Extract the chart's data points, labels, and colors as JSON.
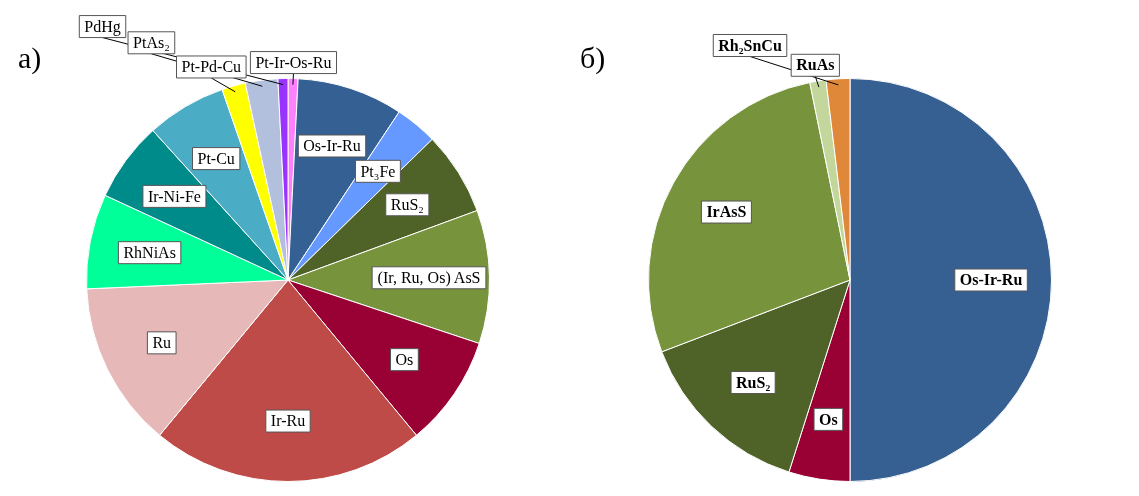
{
  "chart_data": [
    {
      "type": "pie",
      "title": "а)",
      "legend": false,
      "categories": [
        "Pt-Ir-Os-Ru",
        "Os-Ir-Ru",
        "Pt₃Fe",
        "RuS₂",
        "(Ir, Ru, Os) AsS",
        "Os",
        "Ir-Ru",
        "Ru",
        "RhNiAs",
        "Ir-Ni-Fe",
        "Pt-Cu",
        "Pt-Pd-Cu",
        "PtAs₂",
        "PdHg"
      ],
      "values": [
        0.8,
        8.5,
        3.4,
        6.7,
        10.7,
        8.9,
        22.0,
        13.3,
        7.6,
        6.4,
        6.4,
        1.9,
        2.6,
        0.8
      ],
      "colors": [
        "#ff80ff",
        "#356093",
        "#6699ff",
        "#4f6228",
        "#77933c",
        "#990033",
        "#be4b48",
        "#e6b9b8",
        "#00ff99",
        "#008b8b",
        "#4bacc6",
        "#ffff00",
        "#b3c0dd",
        "#9933ff"
      ]
    },
    {
      "type": "pie",
      "title": "б)",
      "legend": false,
      "categories": [
        "Os-Ir-Ru",
        "Os",
        "RuS₂",
        "IrAsS",
        "RuAs",
        "Rh₂SnCu"
      ],
      "values": [
        50,
        4.9,
        14.3,
        27.6,
        1.3,
        1.9
      ],
      "colors": [
        "#376092",
        "#990033",
        "#4f6228",
        "#77933c",
        "#c3d69b",
        "#e0883a"
      ]
    }
  ]
}
